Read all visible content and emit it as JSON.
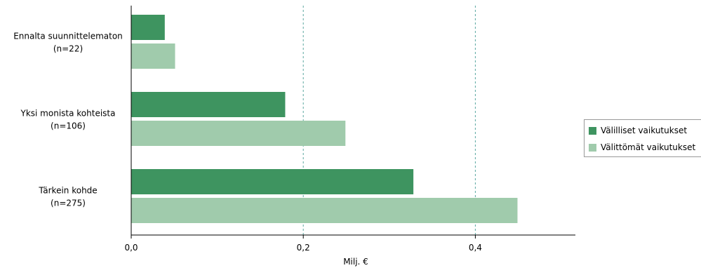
{
  "chart_data": {
    "type": "bar",
    "orientation": "horizontal",
    "categories": [
      "Ennalta suunnittelematon",
      "Yksi monista kohteista",
      "Tärkein kohde"
    ],
    "category_counts": [
      "(n=22)",
      "(n=106)",
      "(n=275)"
    ],
    "series": [
      {
        "name": "Välilliset vaikutukset",
        "color": "#3e9460",
        "values": [
          0.039,
          0.179,
          0.328
        ]
      },
      {
        "name": "Välittömät vaikutukset",
        "color": "#a0cbac",
        "values": [
          0.051,
          0.249,
          0.449
        ]
      }
    ],
    "xlabel": "Milj. €",
    "ylabel": "",
    "xlim": [
      0,
      0.52
    ],
    "x_ticks": [
      0,
      0.2,
      0.4
    ],
    "x_tick_labels": [
      "0,0",
      "0,2",
      "0,4"
    ],
    "grid": "vertical dashed at 0.2 and 0.4",
    "legend_position": "right"
  }
}
